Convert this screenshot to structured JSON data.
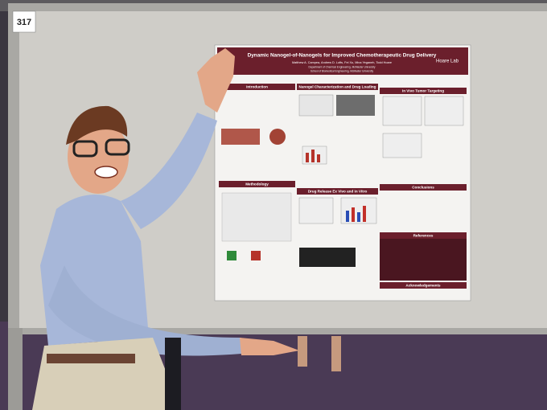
{
  "badge": "317",
  "poster": {
    "title": "Dynamic Nanogel-of-Nanogels for Improved Chemotherapeutic Drug Delivery",
    "authors": "Matthew A. Campea, Andrew D. Lofts, Fei Xu, Mina Yeganeh, Todd Hoare",
    "affiliations": [
      "Department of Chemical Engineering, McMaster University",
      "School of Biomedical Engineering, McMaster University"
    ],
    "lab": "Hoare Lab",
    "sections": [
      "Introduction",
      "Nanogel Characterization and Drug Loading",
      "In Vivo Tumor Targeting",
      "Methodology",
      "Drug Release Ex Vivo and In Vitro",
      "Conclusions",
      "References",
      "Acknowledgements"
    ]
  }
}
